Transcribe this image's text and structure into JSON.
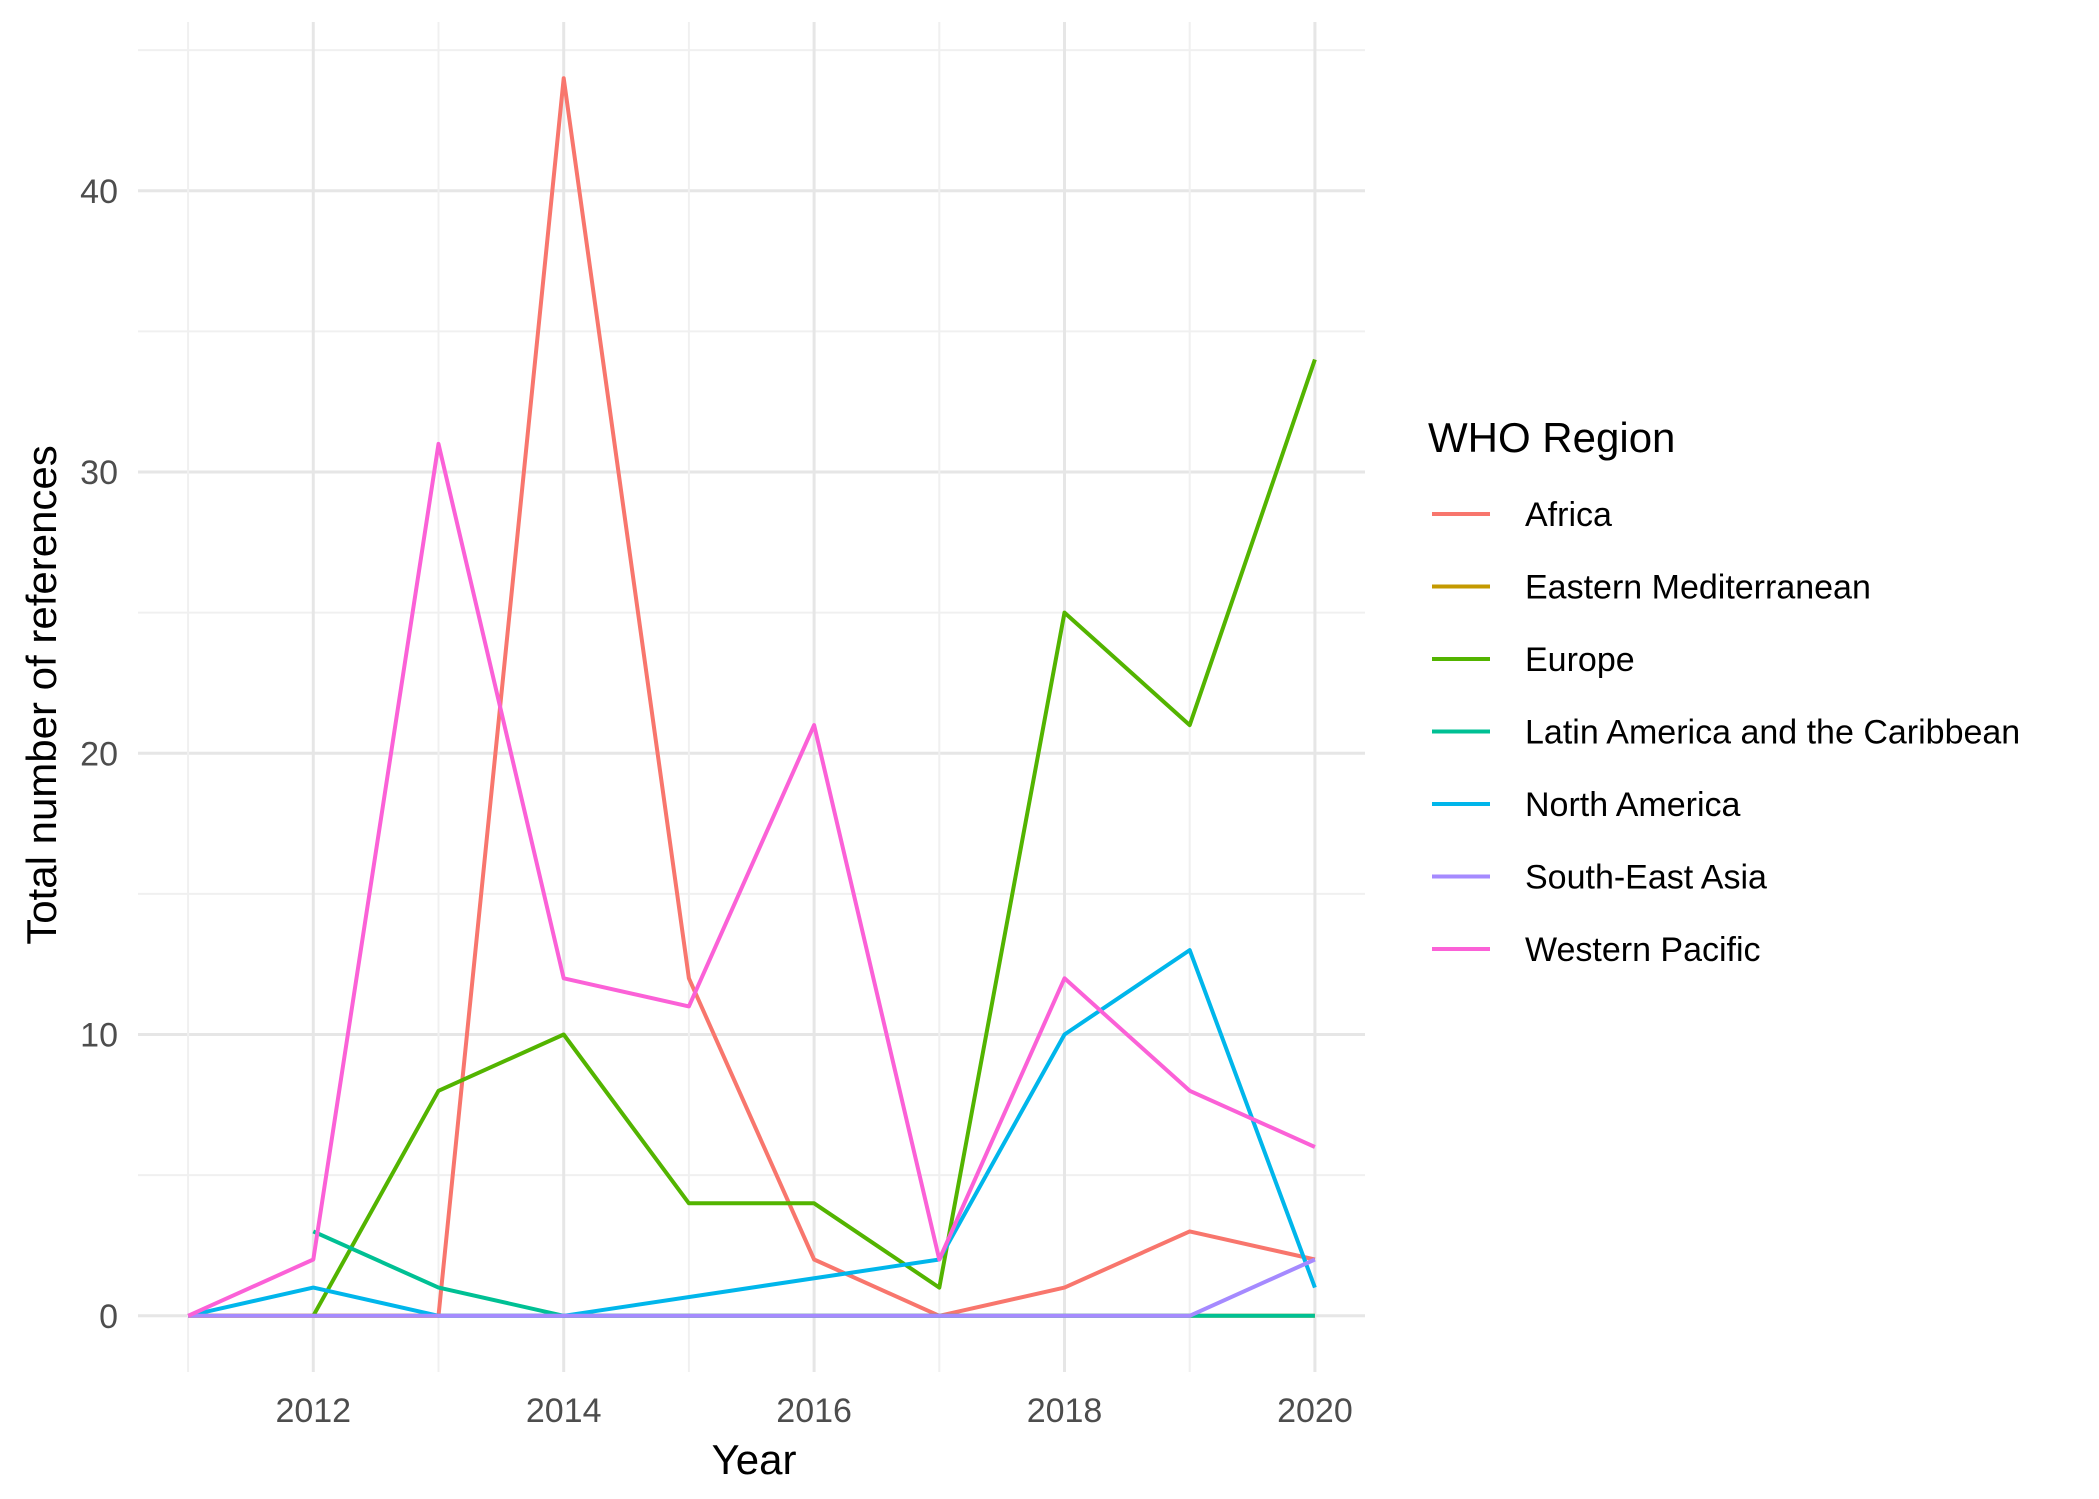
{
  "chart_data": {
    "type": "line",
    "xlabel": "Year",
    "ylabel": "Total number of references",
    "x": [
      2011,
      2012,
      2013,
      2014,
      2015,
      2016,
      2017,
      2018,
      2019,
      2020
    ],
    "xlim": [
      2010.6,
      2020.4
    ],
    "ylim": [
      -2,
      46
    ],
    "x_ticks": [
      2012,
      2014,
      2016,
      2018,
      2020
    ],
    "y_ticks": [
      0,
      10,
      20,
      30,
      40
    ],
    "grid": true,
    "legend": {
      "title": "WHO Region",
      "position": "right"
    },
    "series": [
      {
        "name": "Africa",
        "color": "#F8766D",
        "x": [
          2011,
          2012,
          2013,
          2014,
          2015,
          2016,
          2017,
          2018,
          2019,
          2020
        ],
        "values": [
          0,
          0,
          0,
          44,
          12,
          2,
          0,
          1,
          3,
          2
        ]
      },
      {
        "name": "Eastern Mediterranean",
        "color": "#C49A00",
        "x": [
          2011,
          2012,
          2013,
          2014,
          2015,
          2016,
          2017,
          2018,
          2019,
          2020
        ],
        "values": [
          0,
          0,
          0,
          0,
          0,
          0,
          0,
          0,
          0,
          0
        ]
      },
      {
        "name": "Europe",
        "color": "#53B400",
        "x": [
          2012,
          2013,
          2014,
          2015,
          2016,
          2017,
          2018,
          2019,
          2020
        ],
        "values": [
          0,
          8,
          10,
          4,
          4,
          1,
          25,
          21,
          34
        ]
      },
      {
        "name": "Latin America and the Caribbean",
        "color": "#00C094",
        "x": [
          2012,
          2013,
          2014,
          2015,
          2016,
          2017,
          2018,
          2019,
          2020
        ],
        "values": [
          3,
          1,
          0,
          0,
          0,
          0,
          0,
          0,
          0
        ]
      },
      {
        "name": "North America",
        "color": "#00B6EB",
        "x": [
          2011,
          2012,
          2013,
          2014,
          2017,
          2018,
          2019,
          2020
        ],
        "values": [
          0,
          1,
          0,
          0,
          2,
          10,
          13,
          1
        ]
      },
      {
        "name": "South-East Asia",
        "color": "#A58AFF",
        "x": [
          2011,
          2012,
          2013,
          2014,
          2015,
          2016,
          2017,
          2018,
          2019,
          2020
        ],
        "values": [
          0,
          0,
          0,
          0,
          0,
          0,
          0,
          0,
          0,
          2
        ]
      },
      {
        "name": "Western Pacific",
        "color": "#FB61D7",
        "x": [
          2011,
          2012,
          2013,
          2014,
          2015,
          2016,
          2017,
          2018,
          2019,
          2020
        ],
        "values": [
          0,
          2,
          31,
          12,
          11,
          21,
          2,
          12,
          8,
          6
        ]
      }
    ]
  }
}
